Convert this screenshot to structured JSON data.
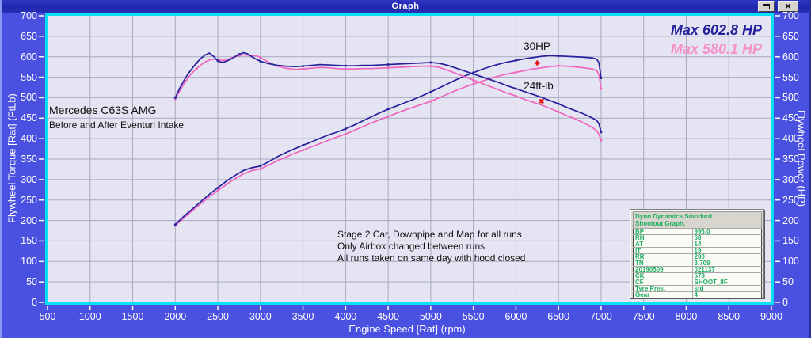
{
  "window": {
    "title": "Graph",
    "close_glyph": "×"
  },
  "chart_data": {
    "type": "line",
    "xlabel": "Engine Speed [Rat] (rpm)",
    "ylabel_left": "Flywheel Torque [Rat] (FtLb)",
    "ylabel_right": "Flywheel Power (HP)",
    "xlim": [
      500,
      9000
    ],
    "ylim": [
      0,
      700
    ],
    "x_ticks": [
      500,
      1000,
      1500,
      2000,
      2500,
      3000,
      3500,
      4000,
      4500,
      5000,
      5500,
      6000,
      6500,
      7000,
      7500,
      8000,
      8500,
      9000
    ],
    "y_ticks": [
      0,
      50,
      100,
      150,
      200,
      250,
      300,
      350,
      400,
      450,
      500,
      550,
      600,
      650,
      700
    ],
    "grid": true,
    "plot_bg": "#e4e4f2",
    "grid_color": "#a9a9bf",
    "frame_color": "#0ae0f4",
    "series": [
      {
        "name": "power-before-intake",
        "color": "#ee66be",
        "unit": "HP",
        "points": [
          [
            2000,
            187
          ],
          [
            2100,
            206
          ],
          [
            2200,
            224
          ],
          [
            2300,
            241
          ],
          [
            2400,
            258
          ],
          [
            2500,
            273
          ],
          [
            2600,
            288
          ],
          [
            2700,
            302
          ],
          [
            2800,
            314
          ],
          [
            2900,
            322
          ],
          [
            3000,
            326
          ],
          [
            3100,
            336
          ],
          [
            3200,
            346
          ],
          [
            3300,
            355
          ],
          [
            3400,
            364
          ],
          [
            3500,
            372
          ],
          [
            3600,
            380
          ],
          [
            3700,
            388
          ],
          [
            3800,
            396
          ],
          [
            3900,
            404
          ],
          [
            4000,
            411
          ],
          [
            4100,
            420
          ],
          [
            4200,
            429
          ],
          [
            4300,
            438
          ],
          [
            4400,
            446
          ],
          [
            4500,
            454
          ],
          [
            4600,
            462
          ],
          [
            4700,
            470
          ],
          [
            4800,
            477
          ],
          [
            4900,
            484
          ],
          [
            5000,
            491
          ],
          [
            5100,
            500
          ],
          [
            5200,
            509
          ],
          [
            5300,
            518
          ],
          [
            5400,
            526
          ],
          [
            5500,
            533
          ],
          [
            5600,
            540
          ],
          [
            5700,
            547
          ],
          [
            5800,
            553
          ],
          [
            5900,
            558
          ],
          [
            6000,
            562
          ],
          [
            6100,
            566
          ],
          [
            6200,
            570
          ],
          [
            6300,
            573
          ],
          [
            6400,
            576
          ],
          [
            6500,
            578
          ],
          [
            6600,
            577
          ],
          [
            6700,
            575
          ],
          [
            6800,
            573
          ],
          [
            6900,
            570
          ],
          [
            6950,
            566
          ],
          [
            6975,
            556
          ],
          [
            7000,
            522
          ]
        ]
      },
      {
        "name": "power-after-intake",
        "color": "#28219e",
        "unit": "HP",
        "points": [
          [
            2000,
            190
          ],
          [
            2100,
            210
          ],
          [
            2200,
            228
          ],
          [
            2300,
            246
          ],
          [
            2400,
            264
          ],
          [
            2500,
            280
          ],
          [
            2600,
            296
          ],
          [
            2700,
            310
          ],
          [
            2800,
            322
          ],
          [
            2900,
            329
          ],
          [
            3000,
            333
          ],
          [
            3100,
            344
          ],
          [
            3200,
            356
          ],
          [
            3300,
            366
          ],
          [
            3400,
            375
          ],
          [
            3500,
            384
          ],
          [
            3600,
            392
          ],
          [
            3700,
            401
          ],
          [
            3800,
            409
          ],
          [
            3900,
            416
          ],
          [
            4000,
            424
          ],
          [
            4100,
            433
          ],
          [
            4200,
            443
          ],
          [
            4300,
            453
          ],
          [
            4400,
            463
          ],
          [
            4500,
            472
          ],
          [
            4600,
            480
          ],
          [
            4700,
            488
          ],
          [
            4800,
            496
          ],
          [
            4900,
            505
          ],
          [
            5000,
            514
          ],
          [
            5100,
            524
          ],
          [
            5200,
            534
          ],
          [
            5300,
            544
          ],
          [
            5400,
            553
          ],
          [
            5500,
            561
          ],
          [
            5600,
            569
          ],
          [
            5700,
            576
          ],
          [
            5800,
            582
          ],
          [
            5900,
            587
          ],
          [
            6000,
            591
          ],
          [
            6100,
            595
          ],
          [
            6200,
            598
          ],
          [
            6300,
            601
          ],
          [
            6400,
            603
          ],
          [
            6500,
            602
          ],
          [
            6600,
            601
          ],
          [
            6700,
            600
          ],
          [
            6800,
            599
          ],
          [
            6900,
            597
          ],
          [
            6950,
            594
          ],
          [
            6975,
            585
          ],
          [
            7000,
            548
          ]
        ]
      },
      {
        "name": "torque-before-intake",
        "color": "#ee66be",
        "unit": "FtLb",
        "points": [
          [
            2000,
            497
          ],
          [
            2050,
            516
          ],
          [
            2100,
            533
          ],
          [
            2150,
            548
          ],
          [
            2200,
            561
          ],
          [
            2250,
            571
          ],
          [
            2300,
            580
          ],
          [
            2350,
            587
          ],
          [
            2400,
            592
          ],
          [
            2450,
            594
          ],
          [
            2500,
            593
          ],
          [
            2550,
            591
          ],
          [
            2600,
            592
          ],
          [
            2650,
            596
          ],
          [
            2700,
            600
          ],
          [
            2750,
            603
          ],
          [
            2800,
            605
          ],
          [
            2850,
            604
          ],
          [
            2900,
            602
          ],
          [
            2950,
            603
          ],
          [
            3000,
            598
          ],
          [
            3100,
            586
          ],
          [
            3200,
            577
          ],
          [
            3300,
            572
          ],
          [
            3400,
            569
          ],
          [
            3500,
            570
          ],
          [
            3600,
            572
          ],
          [
            3700,
            574
          ],
          [
            3800,
            573
          ],
          [
            3900,
            571
          ],
          [
            4000,
            570
          ],
          [
            4100,
            570
          ],
          [
            4200,
            571
          ],
          [
            4300,
            571
          ],
          [
            4400,
            572
          ],
          [
            4500,
            573
          ],
          [
            4600,
            574
          ],
          [
            4700,
            575
          ],
          [
            4800,
            576
          ],
          [
            4900,
            577
          ],
          [
            5000,
            577
          ],
          [
            5100,
            574
          ],
          [
            5200,
            567
          ],
          [
            5300,
            559
          ],
          [
            5400,
            551
          ],
          [
            5500,
            543
          ],
          [
            5600,
            535
          ],
          [
            5700,
            527
          ],
          [
            5800,
            519
          ],
          [
            5900,
            511
          ],
          [
            6000,
            504
          ],
          [
            6100,
            496
          ],
          [
            6200,
            489
          ],
          [
            6300,
            482
          ],
          [
            6400,
            474
          ],
          [
            6500,
            465
          ],
          [
            6600,
            456
          ],
          [
            6700,
            448
          ],
          [
            6800,
            438
          ],
          [
            6900,
            427
          ],
          [
            6950,
            419
          ],
          [
            6975,
            410
          ],
          [
            7000,
            396
          ]
        ]
      },
      {
        "name": "torque-after-intake",
        "color": "#28219e",
        "unit": "FtLb",
        "points": [
          [
            2000,
            500
          ],
          [
            2050,
            522
          ],
          [
            2100,
            541
          ],
          [
            2150,
            558
          ],
          [
            2200,
            572
          ],
          [
            2250,
            585
          ],
          [
            2300,
            596
          ],
          [
            2350,
            604
          ],
          [
            2400,
            609
          ],
          [
            2450,
            601
          ],
          [
            2500,
            590
          ],
          [
            2550,
            586
          ],
          [
            2600,
            589
          ],
          [
            2650,
            594
          ],
          [
            2700,
            600
          ],
          [
            2750,
            606
          ],
          [
            2800,
            610
          ],
          [
            2850,
            607
          ],
          [
            2900,
            600
          ],
          [
            2950,
            594
          ],
          [
            3000,
            589
          ],
          [
            3100,
            583
          ],
          [
            3200,
            579
          ],
          [
            3300,
            577
          ],
          [
            3400,
            576
          ],
          [
            3500,
            577
          ],
          [
            3600,
            579
          ],
          [
            3700,
            581
          ],
          [
            3800,
            580
          ],
          [
            3900,
            579
          ],
          [
            4000,
            578
          ],
          [
            4100,
            578
          ],
          [
            4200,
            579
          ],
          [
            4300,
            579
          ],
          [
            4400,
            580
          ],
          [
            4500,
            581
          ],
          [
            4600,
            582
          ],
          [
            4700,
            583
          ],
          [
            4800,
            584
          ],
          [
            4900,
            585
          ],
          [
            5000,
            586
          ],
          [
            5100,
            584
          ],
          [
            5200,
            579
          ],
          [
            5300,
            572
          ],
          [
            5400,
            565
          ],
          [
            5500,
            558
          ],
          [
            5600,
            551
          ],
          [
            5700,
            544
          ],
          [
            5800,
            537
          ],
          [
            5900,
            529
          ],
          [
            6000,
            522
          ],
          [
            6100,
            515
          ],
          [
            6200,
            508
          ],
          [
            6300,
            501
          ],
          [
            6400,
            493
          ],
          [
            6500,
            485
          ],
          [
            6600,
            476
          ],
          [
            6700,
            468
          ],
          [
            6800,
            460
          ],
          [
            6900,
            450
          ],
          [
            6950,
            444
          ],
          [
            6975,
            436
          ],
          [
            7000,
            416
          ]
        ]
      }
    ],
    "diff_arrows": [
      {
        "name": "power-difference-arrow",
        "rpm": 6250,
        "from": 596,
        "to": 573,
        "color": "#e81818"
      },
      {
        "name": "torque-difference-arrow",
        "rpm": 6300,
        "from": 500,
        "to": 483,
        "color": "#e81818"
      }
    ]
  },
  "annotations": {
    "max_after": "Max 602.8 HP",
    "max_before": "Max 580.1 HP",
    "power_diff": "30HP",
    "torque_diff": "24ft-lb",
    "car_line1": "Mercedes C63S AMG",
    "car_line2": "Before and After Eventuri Intake",
    "notes": [
      "Stage 2 Car, Downpipe and Map for all runs",
      "Only Airbox changed between runs",
      "All runs taken on same day with hood closed"
    ]
  },
  "info_table": {
    "header_line1": "Dyno Dynamics Standard",
    "header_line2": "Shootout Graph.",
    "rows": [
      [
        "BP",
        "996.0"
      ],
      [
        "RH",
        "68"
      ],
      [
        "AT",
        "14"
      ],
      [
        "IT",
        "19"
      ],
      [
        "RR",
        "200"
      ],
      [
        "TN",
        "3.709"
      ],
      [
        "20190509",
        "021137"
      ],
      [
        "CK",
        "678"
      ],
      [
        "CF",
        "SHOOT_8F"
      ],
      [
        "Tyre Pres.",
        "std"
      ],
      [
        "Gear",
        "4"
      ]
    ]
  }
}
